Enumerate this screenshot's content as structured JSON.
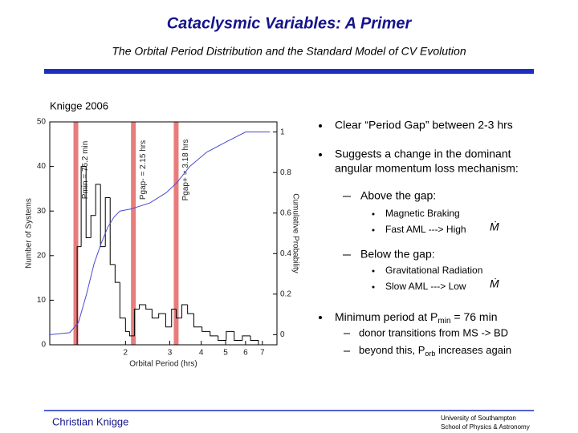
{
  "header": {
    "title": "Cataclysmic Variables: A Primer",
    "subtitle": "The Orbital Period Distribution and the Standard Model of CV Evolution"
  },
  "figure": {
    "caption": "Knigge 2006"
  },
  "chart_data": {
    "type": "histogram",
    "xlabel": "Orbital Period (hrs)",
    "ylabel": "Number of Systems",
    "y2label": "Cumulative Probability",
    "xlog": true,
    "xlim": [
      1,
      8
    ],
    "xticks": [
      2,
      3,
      4,
      5,
      6,
      7
    ],
    "ylim": [
      0,
      50
    ],
    "yticks": [
      0,
      10,
      20,
      30,
      40,
      50
    ],
    "y2lim": [
      -0.05,
      1.05
    ],
    "y2ticks": [
      0,
      0.2,
      0.4,
      0.6,
      0.8,
      1
    ],
    "bins": [
      1.285,
      1.333,
      1.394,
      1.457,
      1.522,
      1.591,
      1.663,
      1.738,
      1.818,
      1.9,
      2.0,
      2.076,
      2.17,
      2.27,
      2.41,
      2.55,
      2.71,
      2.89,
      3.05,
      3.18,
      3.35,
      3.53,
      3.74,
      4.03,
      4.34,
      4.67,
      5.03,
      5.41,
      5.83,
      6.28,
      6.75
    ],
    "counts": [
      22,
      40,
      24,
      29,
      36,
      22,
      33,
      18,
      14,
      6,
      3,
      2,
      8,
      9,
      8,
      6,
      7,
      4,
      8,
      6,
      9,
      7,
      4,
      3,
      2,
      1,
      3,
      1,
      2,
      1
    ],
    "color": "#000000",
    "cumulative": {
      "axis": "y2",
      "color": "#4a4ad0",
      "x": [
        1.0,
        1.2,
        1.3,
        1.4,
        1.5,
        1.6,
        1.7,
        1.8,
        1.9,
        2.1,
        2.5,
        2.9,
        3.2,
        3.6,
        4.2,
        5.0,
        6.0,
        7.5
      ],
      "values": [
        0,
        0.01,
        0.06,
        0.2,
        0.35,
        0.45,
        0.53,
        0.58,
        0.61,
        0.62,
        0.65,
        0.7,
        0.75,
        0.83,
        0.9,
        0.95,
        1.0,
        1.0
      ]
    },
    "annotations": [
      {
        "x": 1.27,
        "label": "Pmin = 76.2 min"
      },
      {
        "x": 2.15,
        "label": "Pgap- = 2.15 hrs"
      },
      {
        "x": 3.18,
        "label": "Pgap+ = 3.18 hrs"
      }
    ],
    "band_color": "#e05050"
  },
  "bullets": {
    "gap": "Clear “Period Gap” between 2-3 hrs",
    "change": [
      "Suggests a change in the dominant",
      "angular momentum loss mechanism:"
    ],
    "above": "Above the gap:",
    "above_items": [
      "Magnetic Braking",
      "Fast AML ---> High"
    ],
    "below": "Below the gap:",
    "below_items": [
      "Gravitational Radiation",
      "Slow AML ---> Low"
    ],
    "mdot": "Ṁ",
    "minimum": [
      "Minimum period at P",
      "min",
      " = 76 min"
    ],
    "minimum_items": [
      [
        "donor transitions from MS -> BD"
      ],
      [
        "beyond this, P",
        "orb",
        " increases again"
      ]
    ]
  },
  "footer": {
    "author": "Christian Knigge",
    "institution": [
      "University of Southampton",
      "School of Physics & Astronomy"
    ]
  }
}
